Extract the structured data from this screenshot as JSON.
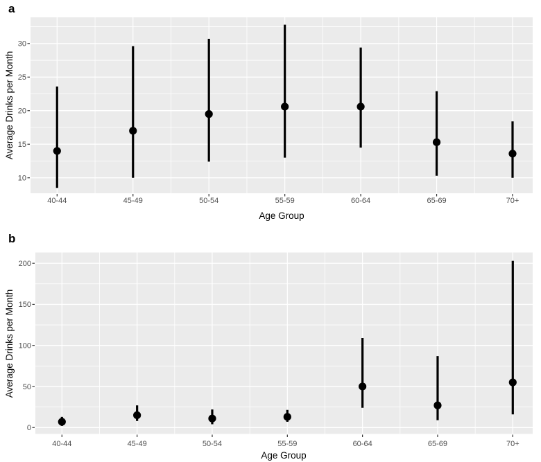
{
  "figure": {
    "panel_labels": [
      "a",
      "b"
    ]
  },
  "chart_data": [
    {
      "type": "scatter",
      "geometry": "pointrange",
      "panel_label": "a",
      "title": "",
      "xlabel": "Age Group",
      "ylabel": "Average Drinks per Month",
      "categories": [
        "40-44",
        "45-49",
        "50-54",
        "55-59",
        "60-64",
        "65-69",
        "70+"
      ],
      "series": [
        {
          "name": "mean",
          "values": [
            14.0,
            17.0,
            19.5,
            20.6,
            20.6,
            15.3,
            13.6
          ]
        }
      ],
      "lower": [
        8.5,
        10.0,
        12.4,
        13.0,
        14.5,
        10.3,
        10.0
      ],
      "upper": [
        23.6,
        29.6,
        30.7,
        32.8,
        29.4,
        22.9,
        18.4
      ],
      "yticks": [
        10,
        15,
        20,
        25,
        30
      ],
      "yminor": [
        12.5,
        17.5,
        22.5,
        27.5,
        32.5
      ],
      "ylim": [
        7.7,
        33.9
      ],
      "grid": "major+minor",
      "legend": "none",
      "panel_background": "#ebebeb",
      "grid_color": "#ffffff",
      "point_color": "#000000",
      "tick_label_color": "#4d4d4d",
      "axis_title_color": "#000000"
    },
    {
      "type": "scatter",
      "geometry": "pointrange",
      "panel_label": "b",
      "title": "",
      "xlabel": "Age Group",
      "ylabel": "Average Drinks per Month",
      "categories": [
        "40-44",
        "45-49",
        "50-54",
        "55-59",
        "60-64",
        "65-69",
        "70+"
      ],
      "series": [
        {
          "name": "mean",
          "values": [
            7,
            15,
            11,
            13,
            50,
            27,
            55
          ]
        }
      ],
      "lower": [
        2,
        8,
        4,
        7,
        24,
        9,
        16
      ],
      "upper": [
        13,
        27,
        22,
        21.5,
        109,
        87,
        203
      ],
      "yticks": [
        0,
        50,
        100,
        150,
        200
      ],
      "yminor": [
        25,
        75,
        125,
        175
      ],
      "ylim": [
        -7.8,
        213.2
      ],
      "grid": "major+minor",
      "legend": "none",
      "panel_background": "#ebebeb",
      "grid_color": "#ffffff",
      "point_color": "#000000",
      "tick_label_color": "#4d4d4d",
      "axis_title_color": "#000000"
    }
  ]
}
